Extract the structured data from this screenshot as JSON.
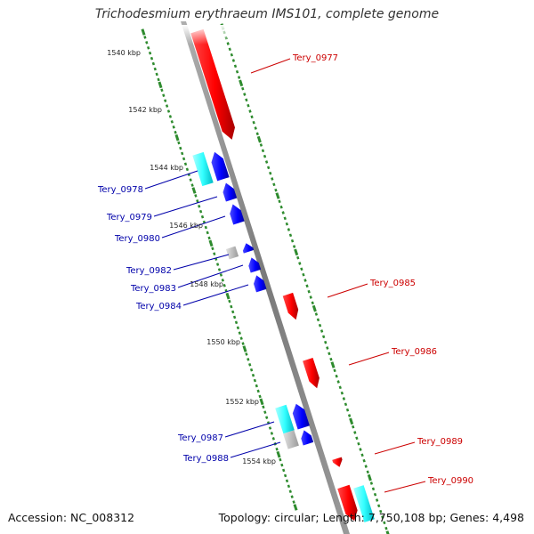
{
  "title": "Trichodesmium erythraeum IMS101, complete genome",
  "accession": "Accession: NC_008312",
  "summary": "Topology: circular; Length: 7,750,108 bp; Genes: 4,498",
  "colors": {
    "forward": "#ff0000",
    "reverse": "#0000ff",
    "forward_rna": "#33ffff",
    "other": "#bfbfbf",
    "backbone": "#8c8c8c",
    "tick": "#2e8b2e",
    "label_forward": "#cc0000",
    "label_reverse": "#0000aa"
  },
  "kbp_labels": [
    "1540 kbp",
    "1542 kbp",
    "1544 kbp",
    "1546 kbp",
    "1548 kbp",
    "1550 kbp",
    "1552 kbp",
    "1554 kbp"
  ],
  "genes": [
    {
      "name": "Tery_0977",
      "strand": "forward"
    },
    {
      "name": "Tery_0978",
      "strand": "reverse"
    },
    {
      "name": "Tery_0979",
      "strand": "reverse"
    },
    {
      "name": "Tery_0980",
      "strand": "reverse"
    },
    {
      "name": "Tery_0982",
      "strand": "reverse"
    },
    {
      "name": "Tery_0983",
      "strand": "reverse"
    },
    {
      "name": "Tery_0984",
      "strand": "reverse"
    },
    {
      "name": "Tery_0985",
      "strand": "forward"
    },
    {
      "name": "Tery_0986",
      "strand": "forward"
    },
    {
      "name": "Tery_0987",
      "strand": "reverse"
    },
    {
      "name": "Tery_0988",
      "strand": "reverse"
    },
    {
      "name": "Tery_0989",
      "strand": "forward"
    },
    {
      "name": "Tery_0990",
      "strand": "forward"
    }
  ]
}
